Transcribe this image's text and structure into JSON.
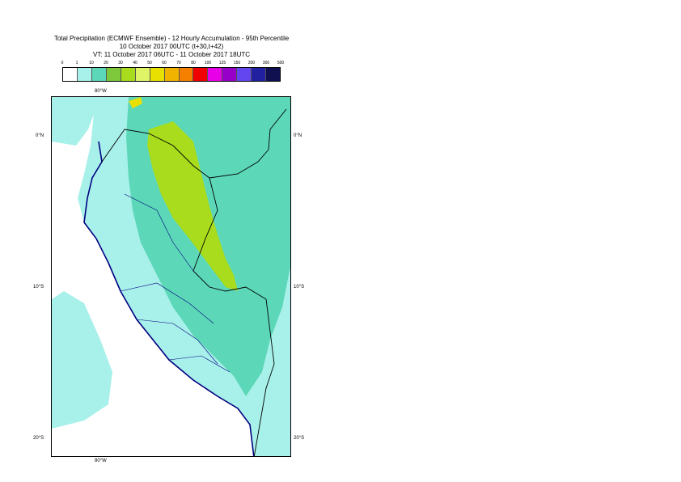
{
  "title": {
    "line1": "Total Precipitation (ECMWF Ensemble) - 12 Hourly Accumulation - 95th Percentile",
    "line2": "10 October 2017 00UTC (t+30,t+42)",
    "line3": "VT: 11 October 2017 06UTC - 11 October 2017 18UTC"
  },
  "legend": {
    "labels": [
      "0",
      "1",
      "10",
      "20",
      "30",
      "40",
      "50",
      "60",
      "70",
      "80",
      "100",
      "125",
      "150",
      "200",
      "300",
      "500"
    ],
    "colors": [
      "#ffffff",
      "#a8f0ea",
      "#5cd8b8",
      "#7ec83c",
      "#a8dc1c",
      "#e0f468",
      "#e8e000",
      "#f0b400",
      "#f58000",
      "#f00000",
      "#e800e8",
      "#9600c8",
      "#6446f0",
      "#2020a0",
      "#101050"
    ]
  },
  "axes": {
    "top_lon": "80°W",
    "bottom_lon": "80°W",
    "lat_labels": [
      "0°N",
      "10°S",
      "20°S"
    ]
  },
  "colors": {
    "sea": "#a8f0ea",
    "dry_land": "#ffffff",
    "moderate": "#5cd8b8",
    "heavy": "#a8dc1c",
    "coast": "#000080",
    "border": "#000000"
  }
}
